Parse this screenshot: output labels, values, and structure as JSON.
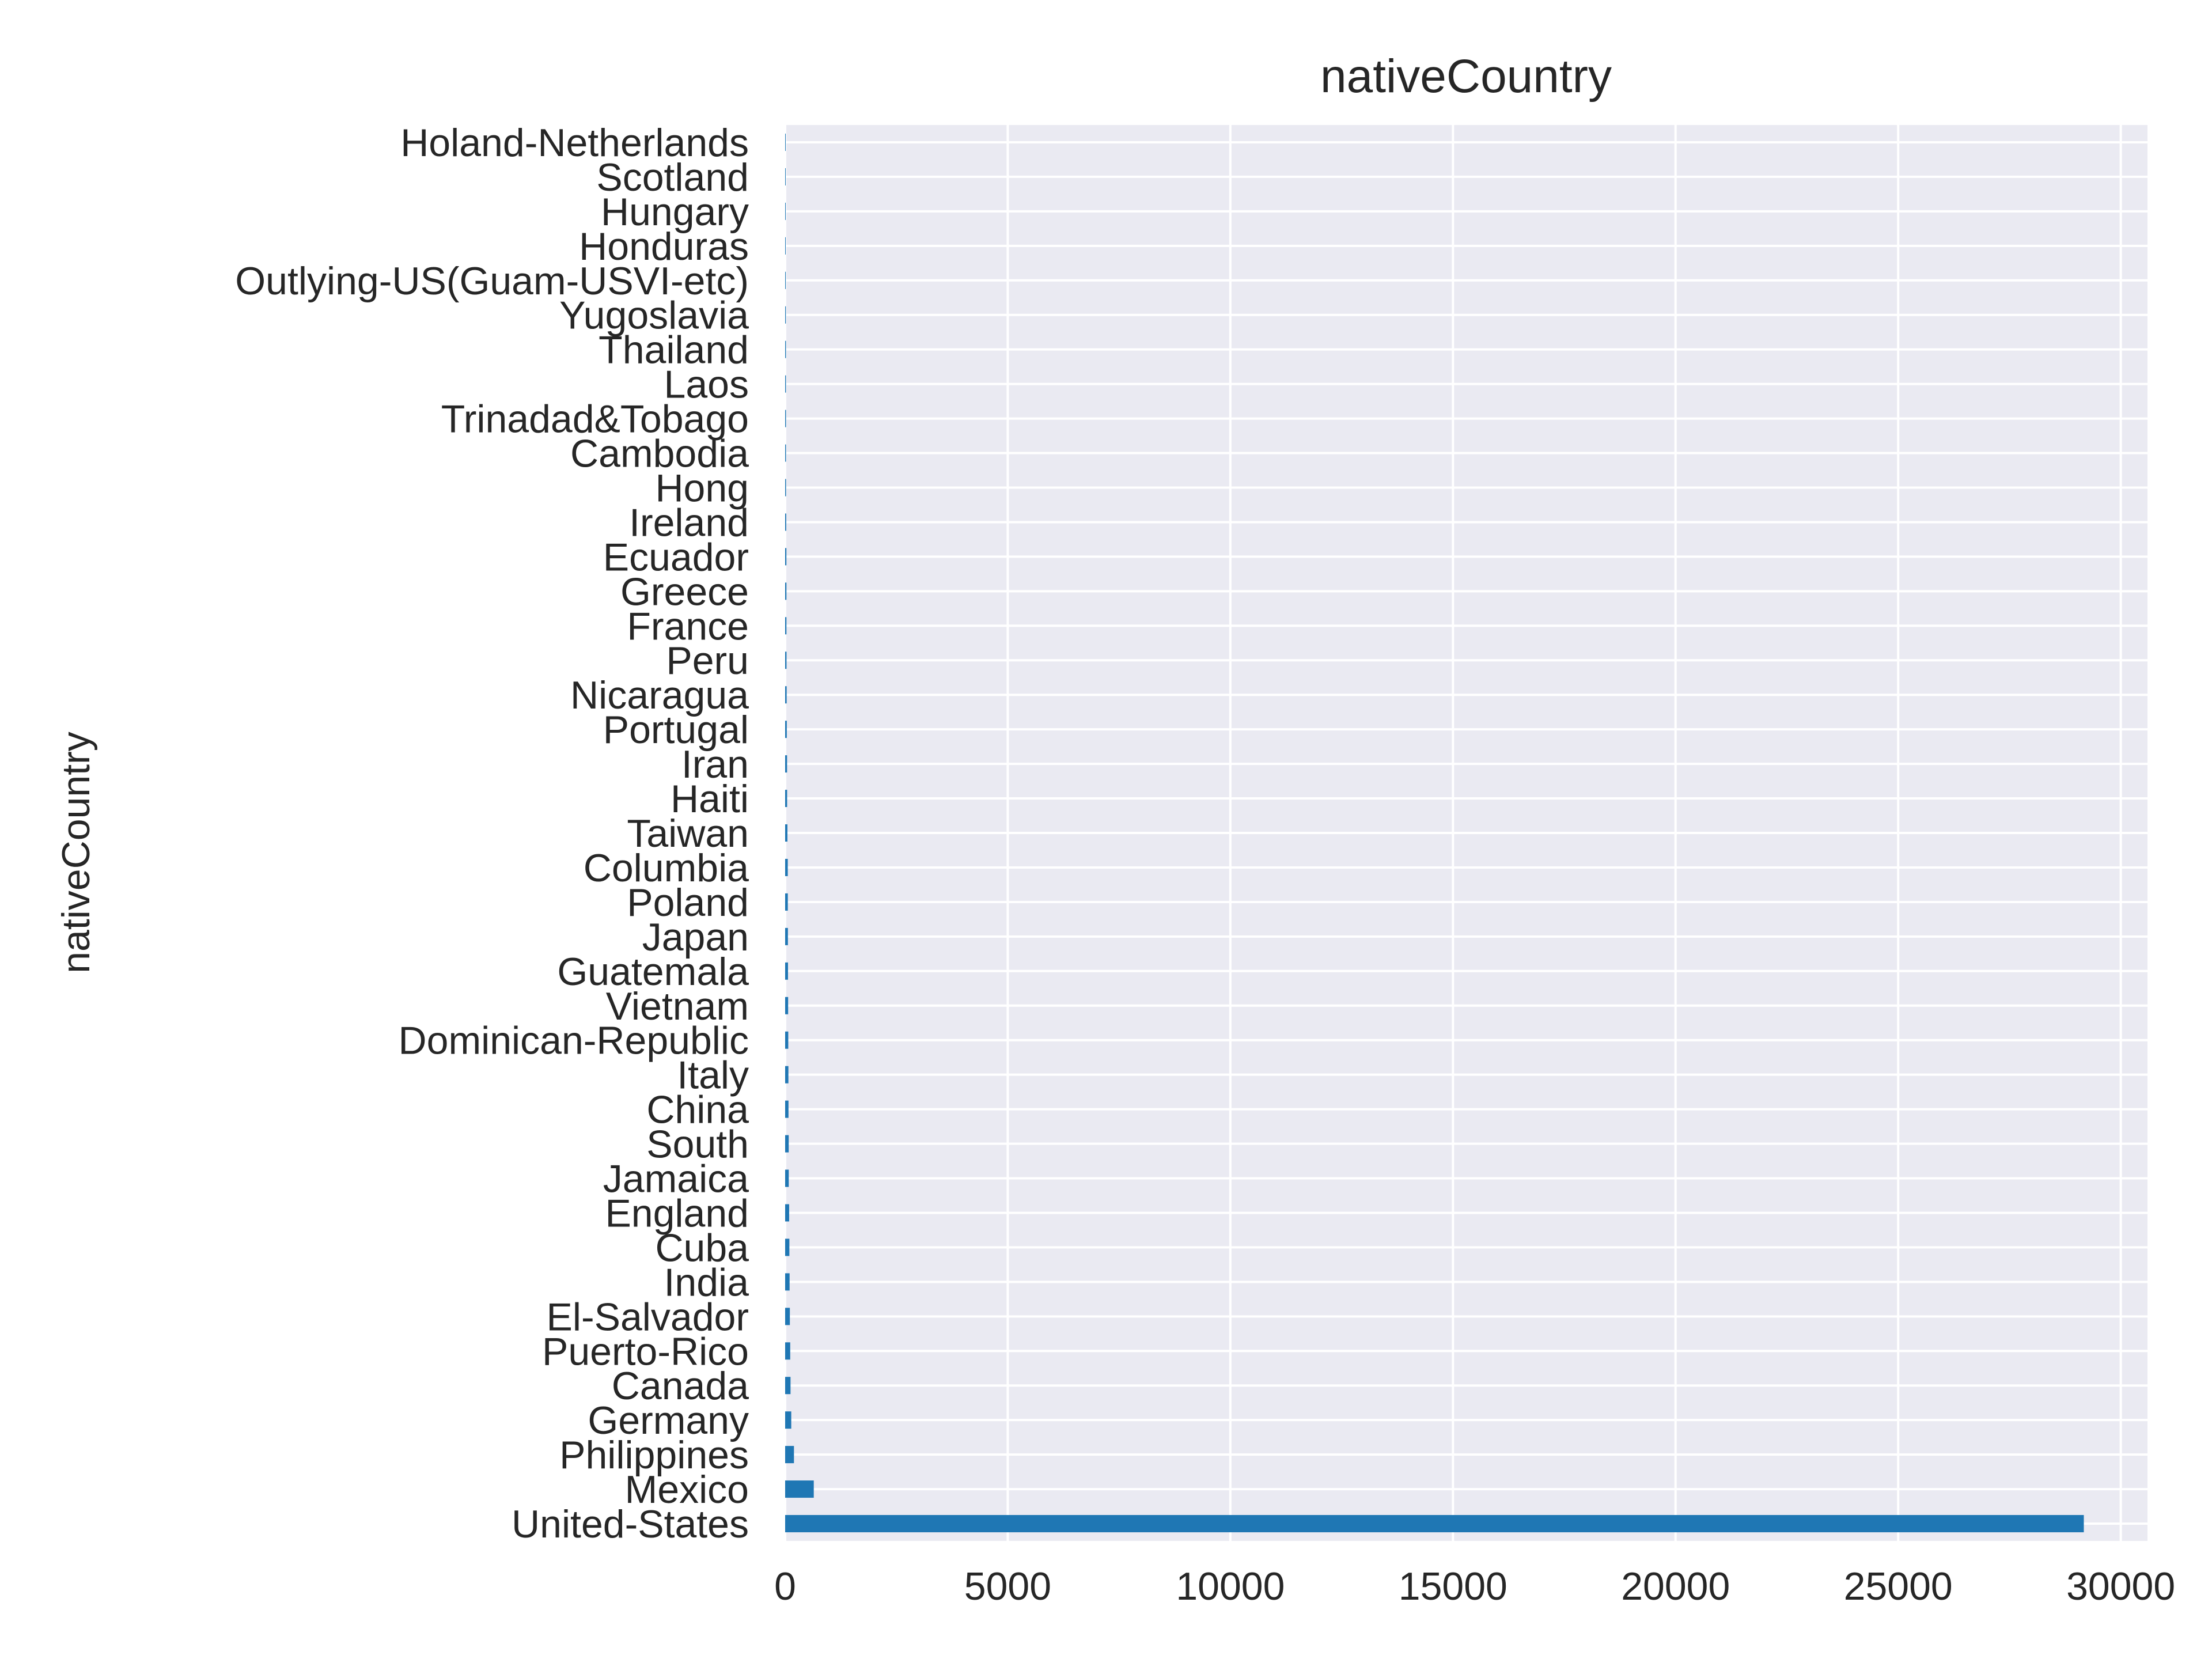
{
  "chart_data": {
    "type": "bar",
    "orientation": "horizontal",
    "title": "nativeCountry",
    "xlabel": "",
    "ylabel": "nativeCountry",
    "xlim": [
      0,
      30600
    ],
    "x_ticks": [
      0,
      5000,
      10000,
      15000,
      20000,
      25000,
      30000
    ],
    "x_tick_labels": [
      "0",
      "5000",
      "10000",
      "15000",
      "20000",
      "25000",
      "30000"
    ],
    "grid": true,
    "bar_color": "#1f77b4",
    "background_color": "#eaeaf2",
    "grid_color": "#ffffff",
    "categories": [
      "United-States",
      "Mexico",
      "Philippines",
      "Germany",
      "Canada",
      "Puerto-Rico",
      "El-Salvador",
      "India",
      "Cuba",
      "England",
      "Jamaica",
      "South",
      "China",
      "Italy",
      "Dominican-Republic",
      "Vietnam",
      "Guatemala",
      "Japan",
      "Poland",
      "Columbia",
      "Taiwan",
      "Haiti",
      "Iran",
      "Portugal",
      "Nicaragua",
      "Peru",
      "France",
      "Greece",
      "Ecuador",
      "Ireland",
      "Hong",
      "Cambodia",
      "Trinadad&Tobago",
      "Laos",
      "Thailand",
      "Yugoslavia",
      "Outlying-US(Guam-USVI-etc)",
      "Honduras",
      "Hungary",
      "Scotland",
      "Holand-Netherlands"
    ],
    "values": [
      29170,
      643,
      198,
      137,
      121,
      114,
      106,
      100,
      95,
      90,
      81,
      80,
      75,
      73,
      70,
      67,
      64,
      62,
      60,
      59,
      51,
      44,
      43,
      37,
      34,
      31,
      29,
      29,
      28,
      24,
      20,
      19,
      19,
      18,
      18,
      16,
      14,
      13,
      13,
      12,
      1
    ]
  }
}
